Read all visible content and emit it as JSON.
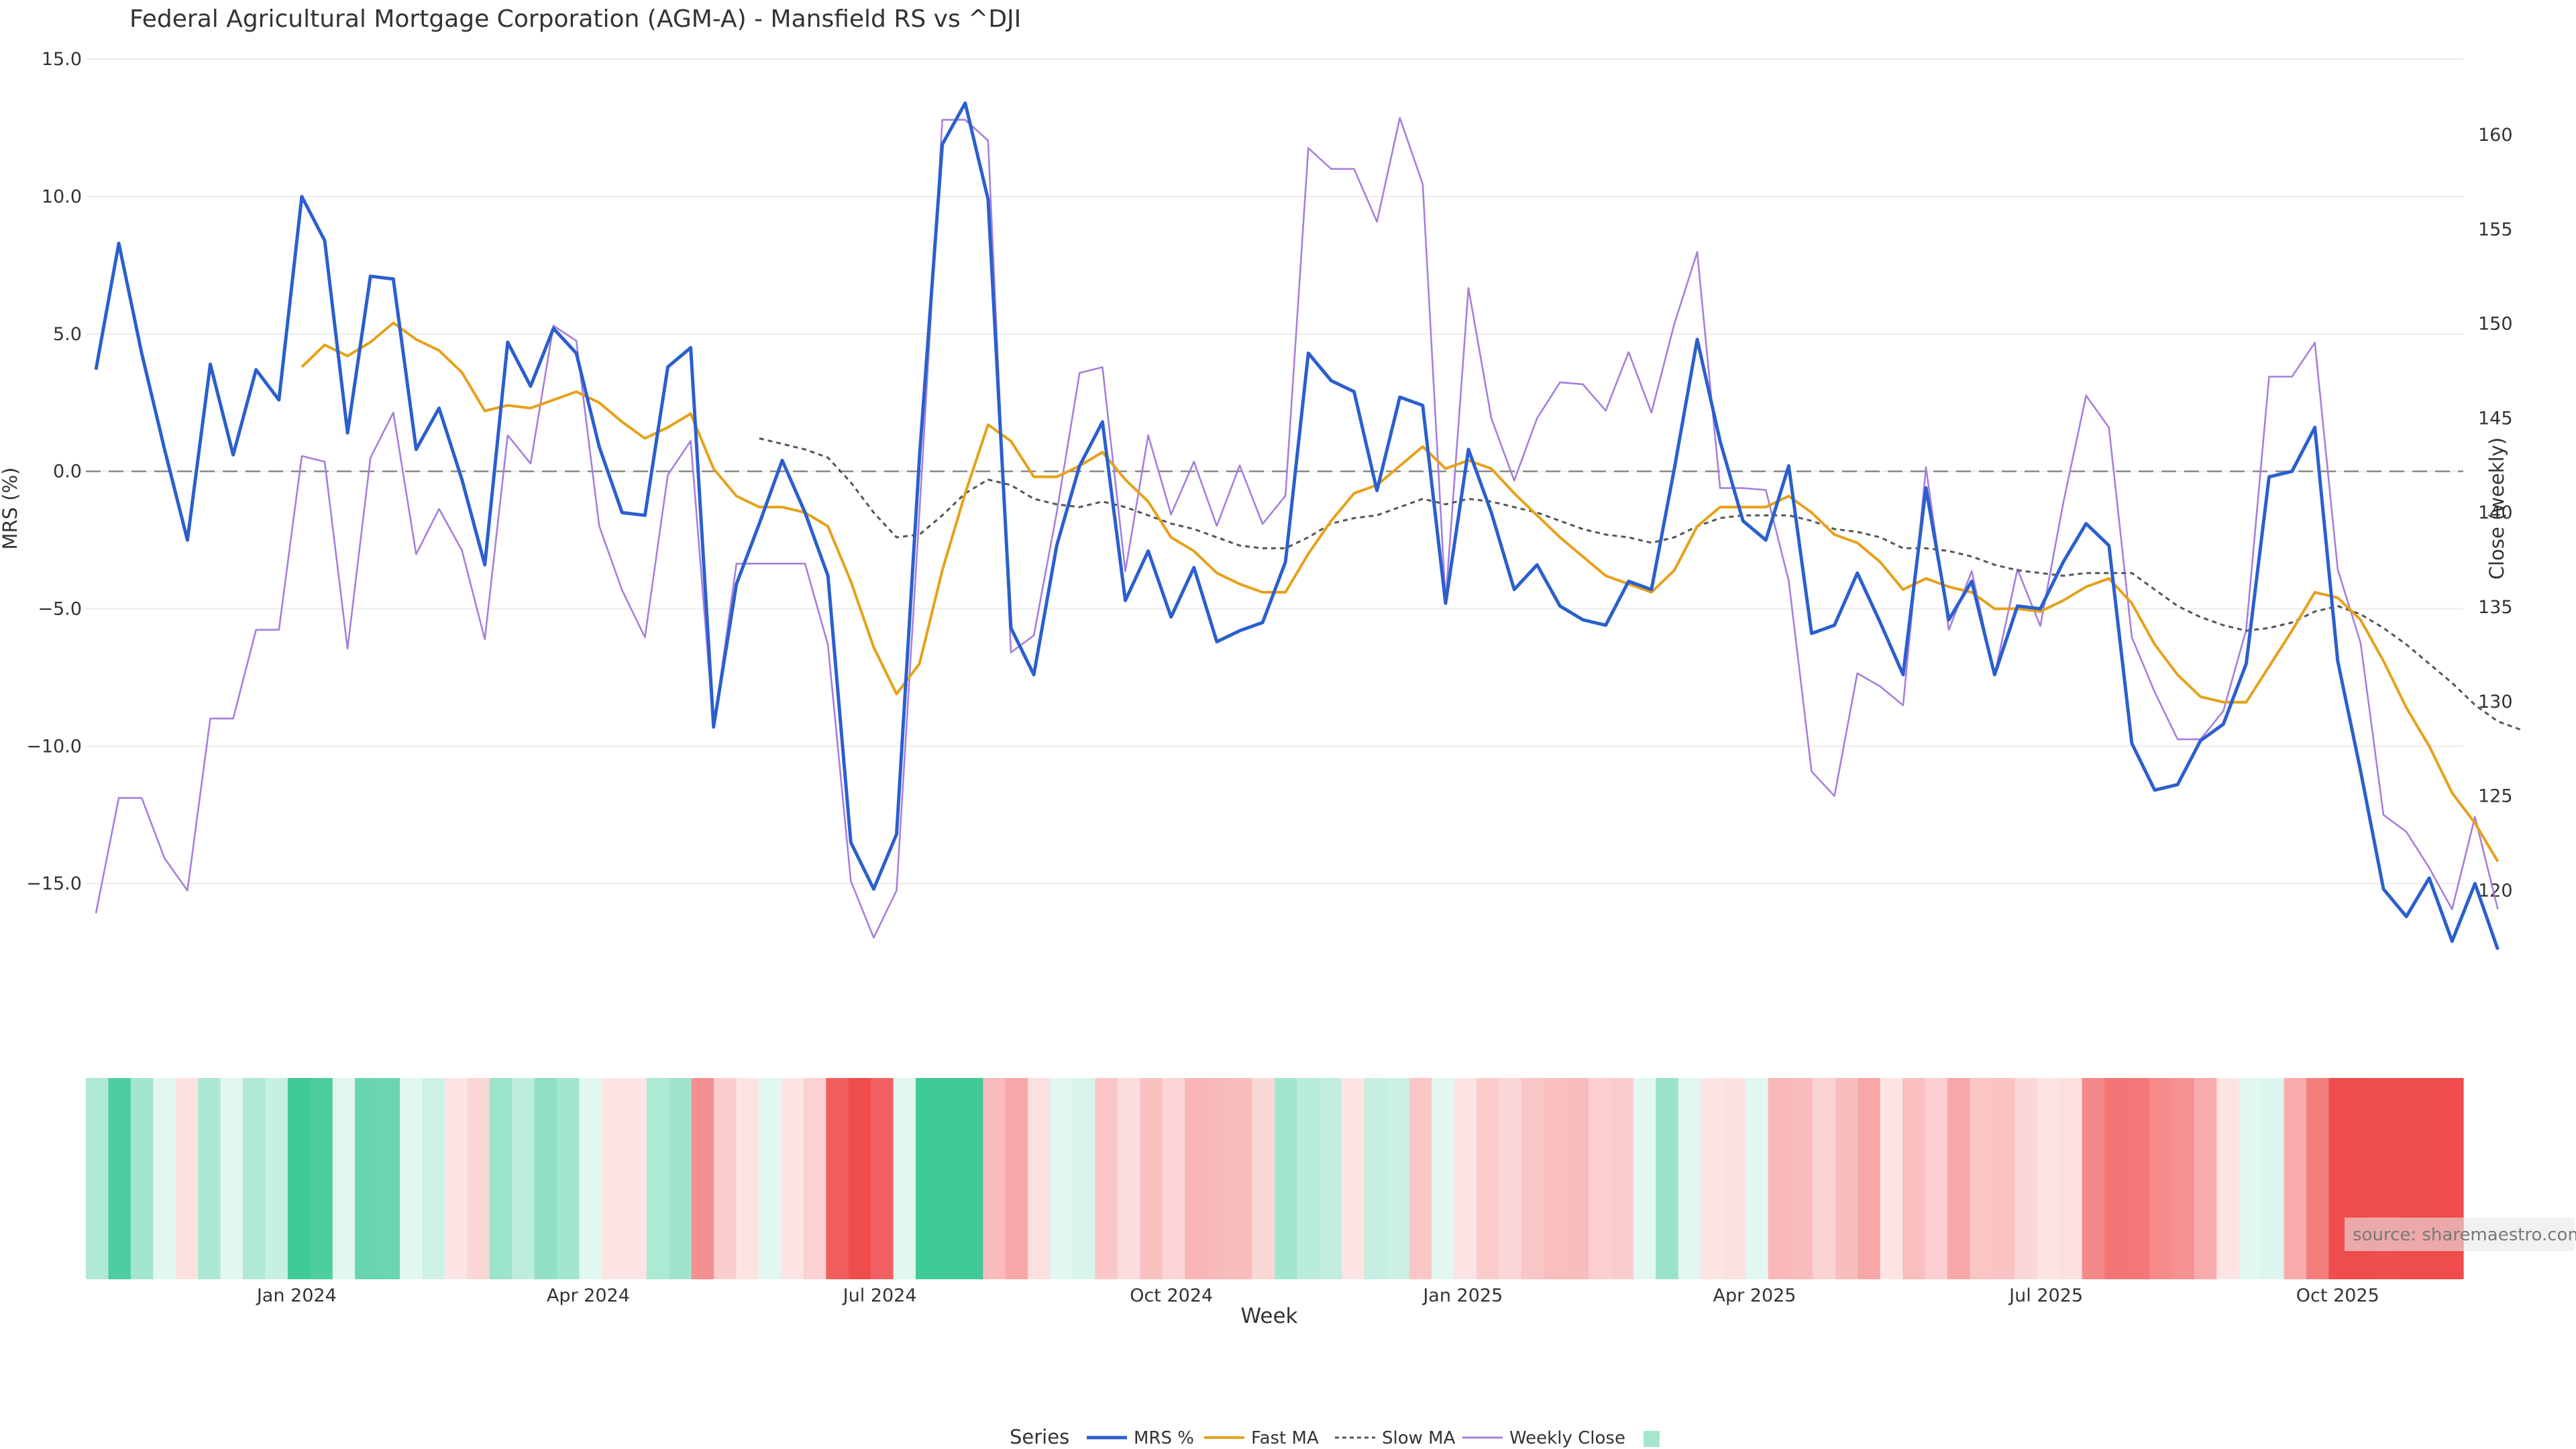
{
  "chart_data": {
    "type": "line",
    "title": "Federal Agricultural Mortgage Corporation (AGM-A) - Mansfield RS vs ^DJI",
    "xlabel": "Week",
    "ylabel_left": "MRS (%)",
    "ylabel_right": "Close (weekly)",
    "y_left_ticks": [
      15,
      10,
      5,
      0,
      -5,
      -10,
      -15
    ],
    "y_left_tick_labels": [
      "15.0",
      "10.0",
      "5.0",
      "0.0",
      "−5.0",
      "−10.0",
      "−15.0"
    ],
    "y_right_ticks": [
      160,
      155,
      150,
      145,
      140,
      135,
      130,
      125,
      120
    ],
    "y_right_tick_labels": [
      "160",
      "155",
      "150",
      "145",
      "140",
      "135",
      "130",
      "125",
      "120"
    ],
    "x_tick_labels": [
      "Jan 2024",
      "Apr 2024",
      "Jul 2024",
      "Oct 2024",
      "Jan 2025",
      "Apr 2025",
      "Jul 2025",
      "Oct 2025"
    ],
    "x_tick_weeks": [
      9,
      22,
      35,
      48,
      61,
      74,
      87,
      100
    ],
    "ylim_left": [
      -18,
      15.2
    ],
    "ylim_right": [
      116,
      164.3
    ],
    "series": [
      {
        "name": "MRS %",
        "color": "#2b5fce",
        "values": [
          3.7,
          8.3,
          4.3,
          0.8,
          -2.5,
          3.9,
          0.6,
          3.7,
          2.6,
          10.0,
          8.4,
          1.4,
          7.1,
          7.0,
          0.8,
          2.3,
          -0.3,
          -3.4,
          4.7,
          3.1,
          5.2,
          4.3,
          0.9,
          -1.5,
          -1.6,
          3.8,
          4.5,
          -9.3,
          -4.1,
          -1.9,
          0.4,
          -1.5,
          -3.8,
          -13.5,
          -15.2,
          -13.2,
          0.5,
          11.9,
          13.4,
          9.9,
          -5.7,
          -7.4,
          -2.7,
          0.2,
          1.8,
          -4.7,
          -2.9,
          -5.3,
          -3.5,
          -6.2,
          -5.8,
          -5.5,
          -3.3,
          4.3,
          3.3,
          2.9,
          -0.7,
          2.7,
          2.4,
          -4.8,
          0.8,
          -1.5,
          -4.3,
          -3.4,
          -4.9,
          -5.4,
          -5.6,
          -4.0,
          -4.3,
          0.1,
          4.8,
          1.1,
          -1.8,
          -2.5,
          0.2,
          -5.9,
          -5.6,
          -3.7,
          -5.5,
          -7.4,
          -0.6,
          -5.4,
          -4.0,
          -7.4,
          -4.9,
          -5.0,
          -3.3,
          -1.9,
          -2.7,
          -9.9,
          -11.6,
          -11.4,
          -9.8,
          -9.2,
          -7.0,
          -0.2,
          0.0,
          1.6,
          -6.9,
          -10.9,
          -15.2,
          -16.2,
          -14.8,
          -17.1,
          -15.0,
          -17.4
        ]
      },
      {
        "name": "Fast MA",
        "color": "#e6a11a",
        "values": [
          null,
          null,
          null,
          null,
          null,
          null,
          null,
          null,
          null,
          3.8,
          4.6,
          4.2,
          4.7,
          5.4,
          4.8,
          4.4,
          3.6,
          2.2,
          2.4,
          2.3,
          2.6,
          2.9,
          2.5,
          1.8,
          1.2,
          1.6,
          2.1,
          0.1,
          -0.9,
          -1.3,
          -1.3,
          -1.5,
          -2.0,
          -4.0,
          -6.4,
          -8.1,
          -7.0,
          -3.6,
          -0.8,
          1.7,
          1.1,
          -0.2,
          -0.2,
          0.2,
          0.7,
          -0.3,
          -1.1,
          -2.4,
          -2.9,
          -3.7,
          -4.1,
          -4.4,
          -4.4,
          -3.0,
          -1.8,
          -0.8,
          -0.5,
          0.2,
          0.9,
          0.1,
          0.4,
          0.1,
          -0.8,
          -1.6,
          -2.4,
          -3.1,
          -3.8,
          -4.1,
          -4.4,
          -3.6,
          -2.0,
          -1.3,
          -1.3,
          -1.3,
          -0.9,
          -1.5,
          -2.3,
          -2.6,
          -3.3,
          -4.3,
          -3.9,
          -4.2,
          -4.4,
          -5.0,
          -5.0,
          -5.1,
          -4.7,
          -4.2,
          -3.9,
          -4.8,
          -6.3,
          -7.4,
          -8.2,
          -8.4,
          -8.4,
          -7.1,
          -5.8,
          -4.4,
          -4.6,
          -5.4,
          -6.9,
          -8.6,
          -10.0,
          -11.7,
          -12.8,
          -14.2
        ]
      },
      {
        "name": "Slow MA",
        "color": "#555555",
        "dash": true,
        "values": [
          null,
          null,
          null,
          null,
          null,
          null,
          null,
          null,
          null,
          null,
          null,
          null,
          null,
          null,
          null,
          null,
          null,
          null,
          null,
          null,
          null,
          null,
          null,
          null,
          null,
          null,
          null,
          null,
          null,
          1.2,
          1.0,
          0.8,
          0.5,
          -0.4,
          -1.5,
          -2.4,
          -2.3,
          -1.6,
          -0.8,
          -0.3,
          -0.5,
          -1.0,
          -1.2,
          -1.3,
          -1.1,
          -1.3,
          -1.6,
          -1.9,
          -2.1,
          -2.4,
          -2.7,
          -2.8,
          -2.8,
          -2.4,
          -1.9,
          -1.7,
          -1.6,
          -1.3,
          -1.0,
          -1.2,
          -1.0,
          -1.1,
          -1.3,
          -1.5,
          -1.8,
          -2.1,
          -2.3,
          -2.4,
          -2.6,
          -2.4,
          -2.0,
          -1.7,
          -1.6,
          -1.6,
          -1.6,
          -1.8,
          -2.1,
          -2.2,
          -2.4,
          -2.8,
          -2.8,
          -2.9,
          -3.1,
          -3.4,
          -3.6,
          -3.7,
          -3.8,
          -3.7,
          -3.7,
          -3.7,
          -4.3,
          -4.9,
          -5.3,
          -5.6,
          -5.8,
          -5.7,
          -5.5,
          -5.1,
          -4.9,
          -5.2,
          -5.7,
          -6.3,
          -7.0,
          -7.7,
          -8.5,
          -9.1,
          -9.4
        ]
      },
      {
        "name": "Weekly Close",
        "color": "#a67fdb",
        "axis": "right",
        "values": [
          118.8,
          124.9,
          124.9,
          121.7,
          120.0,
          129.1,
          129.1,
          133.8,
          133.8,
          143.0,
          142.7,
          132.8,
          142.9,
          145.3,
          137.8,
          140.2,
          138.0,
          133.3,
          144.1,
          142.6,
          149.9,
          149.1,
          139.3,
          135.9,
          133.4,
          142.0,
          143.8,
          128.6,
          137.3,
          137.3,
          137.3,
          137.3,
          133.0,
          120.5,
          117.5,
          120.0,
          140.0,
          160.8,
          160.8,
          159.7,
          132.6,
          133.5,
          140.0,
          147.4,
          147.7,
          136.9,
          144.1,
          139.9,
          142.7,
          139.3,
          142.5,
          139.4,
          140.9,
          159.3,
          158.2,
          158.2,
          155.4,
          160.9,
          157.4,
          135.3,
          151.9,
          145.0,
          141.7,
          145.0,
          146.9,
          146.8,
          145.4,
          148.5,
          145.3,
          150.0,
          153.8,
          141.3,
          141.3,
          141.2,
          136.4,
          126.3,
          125.0,
          131.5,
          130.8,
          129.8,
          142.4,
          133.8,
          136.9,
          131.4,
          137.0,
          134.0,
          140.5,
          146.2,
          144.5,
          133.4,
          130.5,
          128.0,
          128.0,
          129.5,
          133.8,
          147.2,
          147.2,
          149.0,
          137.0,
          133.1,
          124.0,
          123.1,
          121.2,
          119.0,
          123.9,
          119.0
        ]
      }
    ],
    "heatmap_band": {
      "description": "Weekly MRS color band (green = positive, red = negative)",
      "positive_color": "#3fca98",
      "negative_color": "#ef4c4c"
    },
    "legend": {
      "title": "Series",
      "entries": [
        "MRS %",
        "Fast MA",
        "Slow MA",
        "Weekly Close"
      ],
      "placement": "bottom-center"
    },
    "annotation": "source: sharemaestro.com",
    "grid": true,
    "zero_line": true
  }
}
